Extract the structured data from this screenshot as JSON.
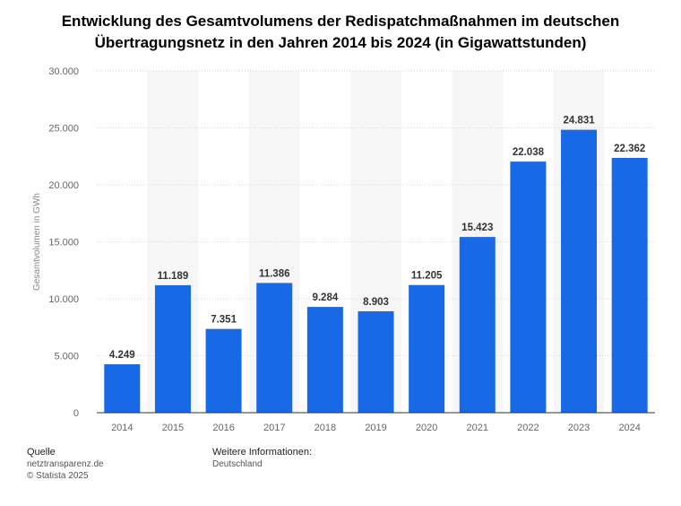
{
  "chart_data": {
    "type": "bar",
    "title_line1": "Entwicklung des Gesamtvolumens der Redispatchmaßnahmen im deutschen",
    "title_line2": "Übertragungsnetz in den Jahren 2014 bis 2024 (in Gigawattstunden)",
    "ylabel": "Gesamtvolumen in GWh",
    "categories": [
      "2014",
      "2015",
      "2016",
      "2017",
      "2018",
      "2019",
      "2020",
      "2021",
      "2022",
      "2023",
      "2024"
    ],
    "values": [
      4249,
      11189,
      7351,
      11386,
      9284,
      8903,
      11205,
      15423,
      22038,
      24831,
      22362
    ],
    "value_labels": [
      "4.249",
      "11.189",
      "7.351",
      "11.386",
      "9.284",
      "8.903",
      "11.205",
      "15.423",
      "22.038",
      "24.831",
      "22.362"
    ],
    "ylim": [
      0,
      30000
    ],
    "yticks": [
      0,
      5000,
      10000,
      15000,
      20000,
      25000,
      30000
    ],
    "ytick_labels": [
      "0",
      "5.000",
      "10.000",
      "15.000",
      "20.000",
      "25.000",
      "30.000"
    ],
    "bar_color": "#1769e6",
    "grid": true
  },
  "footer": {
    "source_heading": "Quelle",
    "source_line1": "netztransparenz.de",
    "source_line2": "© Statista 2025",
    "info_heading": "Weitere Informationen:",
    "info_line1": "Deutschland"
  }
}
